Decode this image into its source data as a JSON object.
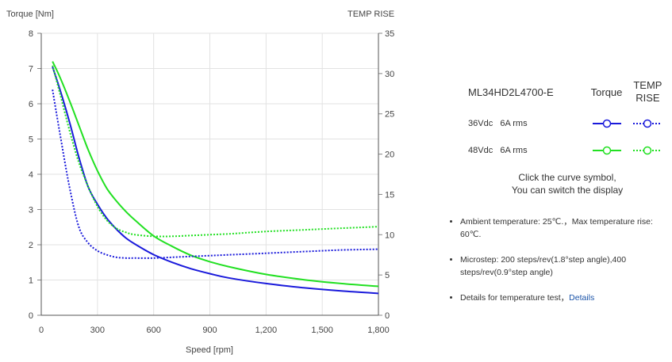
{
  "chart_data": {
    "type": "line",
    "ylabel_left": "Torque [Nm]",
    "ylabel_right": "TEMP RISE [℃]",
    "xlabel": "Speed [rpm]",
    "xlim": [
      0,
      1800
    ],
    "ylim_left": [
      0,
      8
    ],
    "ylim_right": [
      0,
      35
    ],
    "x_ticks": [
      "0",
      "300",
      "600",
      "900",
      "1,200",
      "1,500",
      "1,800"
    ],
    "y_left_ticks": [
      "0",
      "1",
      "2",
      "3",
      "4",
      "5",
      "6",
      "7",
      "8"
    ],
    "y_right_ticks": [
      "0",
      "5",
      "10",
      "15",
      "20",
      "25",
      "30",
      "35"
    ],
    "grid": true,
    "series": [
      {
        "name": "36Vdc 6A rms Torque",
        "axis": "left",
        "style": "solid",
        "color": "#1a1adb",
        "x": [
          60,
          100,
          150,
          200,
          250,
          300,
          350,
          400,
          450,
          500,
          600,
          700,
          800,
          900,
          1000,
          1200,
          1400,
          1600,
          1800
        ],
        "y": [
          7.05,
          6.4,
          5.5,
          4.5,
          3.65,
          3.15,
          2.75,
          2.45,
          2.2,
          2.02,
          1.72,
          1.5,
          1.32,
          1.18,
          1.06,
          0.9,
          0.78,
          0.69,
          0.62
        ]
      },
      {
        "name": "48Vdc 6A rms Torque",
        "axis": "left",
        "style": "solid",
        "color": "#22e022",
        "x": [
          60,
          100,
          150,
          200,
          250,
          300,
          350,
          400,
          450,
          500,
          600,
          700,
          800,
          900,
          1000,
          1200,
          1400,
          1600,
          1800
        ],
        "y": [
          7.2,
          6.75,
          6.1,
          5.4,
          4.7,
          4.1,
          3.6,
          3.25,
          2.95,
          2.7,
          2.25,
          1.95,
          1.7,
          1.52,
          1.38,
          1.16,
          1.01,
          0.9,
          0.82
        ]
      },
      {
        "name": "36Vdc 6A rms TEMP RISE",
        "axis": "right",
        "style": "dotted",
        "color": "#1a1adb",
        "x": [
          60,
          100,
          150,
          200,
          250,
          300,
          350,
          400,
          450,
          500,
          600,
          700,
          800,
          900,
          1000,
          1200,
          1400,
          1600,
          1800
        ],
        "y": [
          28.0,
          22.5,
          16.0,
          11.0,
          9.0,
          8.0,
          7.5,
          7.2,
          7.1,
          7.1,
          7.1,
          7.2,
          7.3,
          7.4,
          7.5,
          7.7,
          7.9,
          8.1,
          8.2
        ]
      },
      {
        "name": "48Vdc 6A rms TEMP RISE",
        "axis": "right",
        "style": "dotted",
        "color": "#22e022",
        "x": [
          60,
          100,
          150,
          200,
          250,
          300,
          350,
          400,
          450,
          500,
          600,
          700,
          800,
          900,
          1000,
          1200,
          1400,
          1600,
          1800
        ],
        "y": [
          31.0,
          27.5,
          23.0,
          19.0,
          16.0,
          13.5,
          11.8,
          10.8,
          10.3,
          10.0,
          9.8,
          9.8,
          9.9,
          10.0,
          10.1,
          10.4,
          10.6,
          10.8,
          11.0
        ]
      }
    ]
  },
  "legend": {
    "model": "ML34HD2L4700-E",
    "col_torque": "Torque",
    "col_temp": "TEMP RISE",
    "rows": [
      {
        "label": "36Vdc   6A rms",
        "color": "#1a1adb"
      },
      {
        "label": "48Vdc   6A rms",
        "color": "#22e022"
      }
    ],
    "note_line1": "Click the curve symbol,",
    "note_line2": "You can switch the display"
  },
  "details": {
    "ambient": "Ambient temperature: 25℃.，Max temperature rise: 60℃.",
    "microstep": "Microstep: 200 steps/rev(1.8°step angle),400 steps/rev(0.9°step angle)",
    "temp_test": "Details for temperature test，",
    "temp_test_link": "Details"
  }
}
